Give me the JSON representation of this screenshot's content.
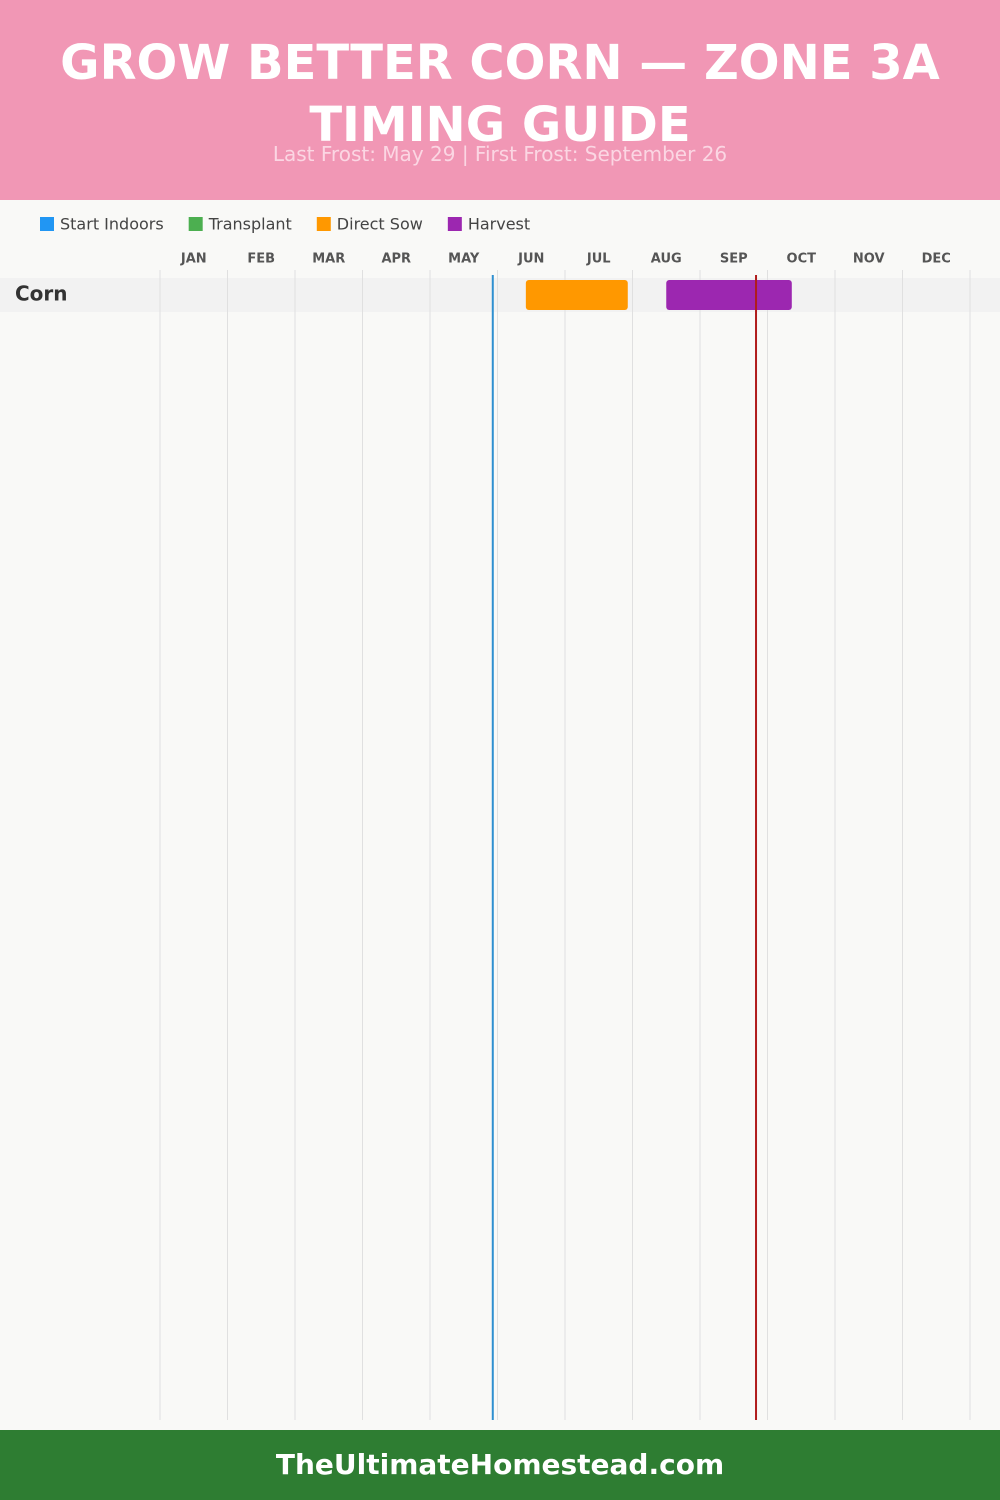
{
  "chart_data": {
    "type": "gantt",
    "title": "GROW BETTER CORN — ZONE 3A TIMING GUIDE",
    "subtitle": "Last Frost: May 29 | First Frost: September 26",
    "months": [
      "JAN",
      "FEB",
      "MAR",
      "APR",
      "MAY",
      "JUN",
      "JUL",
      "AUG",
      "SEP",
      "OCT",
      "NOV",
      "DEC"
    ],
    "xlim": [
      0,
      12
    ],
    "xticks": [
      0,
      1,
      2,
      3,
      4,
      5,
      6,
      7,
      8,
      9,
      10,
      11,
      12
    ],
    "grid": true,
    "rows": [
      "Corn"
    ],
    "series": [
      {
        "name": "Start Indoors",
        "color": "#2196f3",
        "start": [
          null
        ],
        "end": [
          null
        ]
      },
      {
        "name": "Transplant",
        "color": "#4caf50",
        "start": [
          null
        ],
        "end": [
          null
        ]
      },
      {
        "name": "Direct Sow",
        "color": "#ff9800",
        "start": [
          5.42
        ],
        "end": [
          6.93
        ]
      },
      {
        "name": "Harvest",
        "color": "#9c27b0",
        "start": [
          7.5
        ],
        "end": [
          9.36
        ]
      }
    ],
    "markers": [
      {
        "value": 4.93,
        "color": "#2f8fd0"
      },
      {
        "value": 8.83,
        "color": "#b01c1c"
      }
    ]
  },
  "footer": "TheUltimateHomestead.com"
}
